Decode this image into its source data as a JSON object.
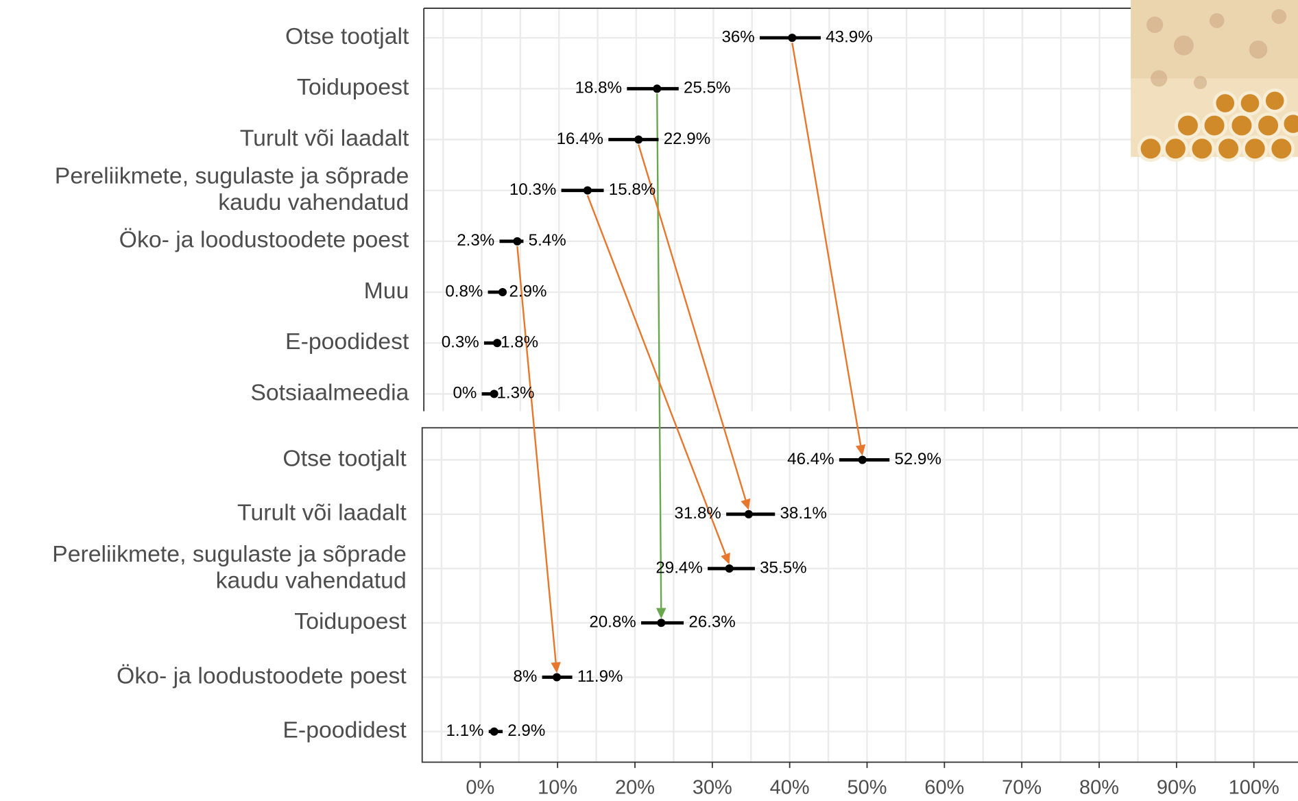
{
  "chart_data": [
    {
      "type": "dot",
      "categories": [
        "Otse tootjalt",
        "Toidupoest",
        "Turult või laadalt",
        "Pereliikmete, sugulaste ja sõprade\nkaudu vahendatud",
        "Öko- ja loodustoodete poest",
        "Muu",
        "E-poodidest",
        "Sotsiaalmeedia"
      ],
      "point": [
        40.2,
        22.7,
        20.3,
        13.7,
        4.6,
        2.7,
        2.0,
        1.6
      ],
      "lower": [
        36,
        18.8,
        16.4,
        10.3,
        2.3,
        0.8,
        0.3,
        0
      ],
      "upper": [
        43.9,
        25.5,
        22.9,
        15.8,
        5.4,
        2.9,
        1.8,
        1.3
      ],
      "lower_labels": [
        "36%",
        "18.8%",
        "16.4%",
        "10.3%",
        "2.3%",
        "0.8%",
        "0.3%",
        "0%"
      ],
      "upper_labels": [
        "43.9%",
        "25.5%",
        "22.9%",
        "15.8%",
        "5.4%",
        "2.9%",
        "1.8%",
        "1.3%"
      ],
      "color": "#000000",
      "xlim": [
        -7.5,
        105.7
      ],
      "xticks": [
        0,
        10,
        20,
        30,
        40,
        50,
        60,
        70,
        80,
        90,
        100
      ],
      "grid": true,
      "arrows": [
        {
          "category": "Otse tootjalt",
          "color": "#e8772e"
        },
        {
          "category": "Toidupoest",
          "color": "#6aa84f"
        },
        {
          "category": "Turult või laadalt",
          "color": "#e8772e"
        },
        {
          "category": "Pereliikmete, sugulaste ja sõprade\nkaudu vahendatud",
          "color": "#e8772e"
        },
        {
          "category": "Öko- ja loodustoodete poest",
          "color": "#e8772e"
        }
      ]
    },
    {
      "type": "dot",
      "categories": [
        "Otse tootjalt",
        "Turult või laadalt",
        "Pereliikmete, sugulaste ja sõprade\nkaudu vahendatud",
        "Toidupoest",
        "Öko- ja loodustoodete poest",
        "E-poodidest"
      ],
      "point": [
        49.4,
        34.7,
        32.2,
        23.4,
        9.9,
        1.8
      ],
      "lower": [
        46.4,
        31.8,
        29.4,
        20.8,
        8,
        1.1
      ],
      "upper": [
        52.9,
        38.1,
        35.5,
        26.3,
        11.9,
        2.9
      ],
      "lower_labels": [
        "46.4%",
        "31.8%",
        "29.4%",
        "20.8%",
        "8%",
        "1.1%"
      ],
      "upper_labels": [
        "52.9%",
        "38.1%",
        "35.5%",
        "26.3%",
        "11.9%",
        "2.9%"
      ],
      "color": "#000000",
      "xlim": [
        -7.5,
        105.7
      ],
      "xticks": [
        {
          "value": 0,
          "label": "0%"
        },
        {
          "value": 10,
          "label": "10%"
        },
        {
          "value": 20,
          "label": "20%"
        },
        {
          "value": 30,
          "label": "30%"
        },
        {
          "value": 40,
          "label": "40%"
        },
        {
          "value": 50,
          "label": "50%"
        },
        {
          "value": 60,
          "label": "60%"
        },
        {
          "value": 70,
          "label": "70%"
        },
        {
          "value": 80,
          "label": "80%"
        },
        {
          "value": 90,
          "label": "90%"
        },
        {
          "value": 100,
          "label": "100%"
        }
      ],
      "grid": true
    }
  ]
}
